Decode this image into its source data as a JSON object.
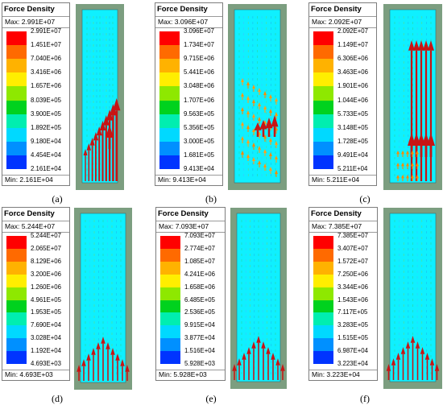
{
  "title_label": "Force Density",
  "max_label": "Max:",
  "min_label": "Min:",
  "colors": {
    "scale": [
      "#ff0000",
      "#ff6a00",
      "#ffb200",
      "#ffee00",
      "#8ee800",
      "#00d21e",
      "#00eeb0",
      "#00d9ff",
      "#0090ff",
      "#0034ff"
    ],
    "ground": "#7c9e80",
    "domain": "#0ff0ff",
    "arrow": "#c81414"
  },
  "panels": [
    {
      "caption": "(a)",
      "max": "2.991E+07",
      "min": "2.161E+04",
      "ticks": [
        "2.991E+07",
        "1.451E+07",
        "7.040E+06",
        "3.416E+06",
        "1.657E+06",
        "8.039E+05",
        "3.900E+05",
        "1.892E+05",
        "9.180E+04",
        "4.454E+04",
        "2.161E+04"
      ]
    },
    {
      "caption": "(b)",
      "max": "3.096E+07",
      "min": "9.413E+04",
      "ticks": [
        "3.096E+07",
        "1.734E+07",
        "9.715E+06",
        "5.441E+06",
        "3.048E+06",
        "1.707E+06",
        "9.563E+05",
        "5.356E+05",
        "3.000E+05",
        "1.681E+05",
        "9.413E+04"
      ]
    },
    {
      "caption": "(c)",
      "max": "2.092E+07",
      "min": "5.211E+04",
      "ticks": [
        "2.092E+07",
        "1.149E+07",
        "6.306E+06",
        "3.463E+06",
        "1.901E+06",
        "1.044E+06",
        "5.733E+05",
        "3.148E+05",
        "1.728E+05",
        "9.491E+04",
        "5.211E+04"
      ]
    },
    {
      "caption": "(d)",
      "max": "5.244E+07",
      "min": "4.693E+03",
      "ticks": [
        "5.244E+07",
        "2.065E+07",
        "8.129E+06",
        "3.200E+06",
        "1.260E+06",
        "4.961E+05",
        "1.953E+05",
        "7.690E+04",
        "3.028E+04",
        "1.192E+04",
        "4.693E+03"
      ]
    },
    {
      "caption": "(e)",
      "max": "7.093E+07",
      "min": "5.928E+03",
      "ticks": [
        "7.093E+07",
        "2.774E+07",
        "1.085E+07",
        "4.241E+06",
        "1.658E+06",
        "6.485E+05",
        "2.536E+05",
        "9.915E+04",
        "3.877E+04",
        "1.516E+04",
        "5.928E+03"
      ]
    },
    {
      "caption": "(f)",
      "max": "7.385E+07",
      "min": "3.223E+04",
      "ticks": [
        "7.385E+07",
        "3.407E+07",
        "1.572E+07",
        "7.250E+06",
        "3.344E+06",
        "1.543E+06",
        "7.117E+05",
        "3.283E+05",
        "1.515E+05",
        "6.987E+04",
        "3.223E+04"
      ]
    }
  ]
}
